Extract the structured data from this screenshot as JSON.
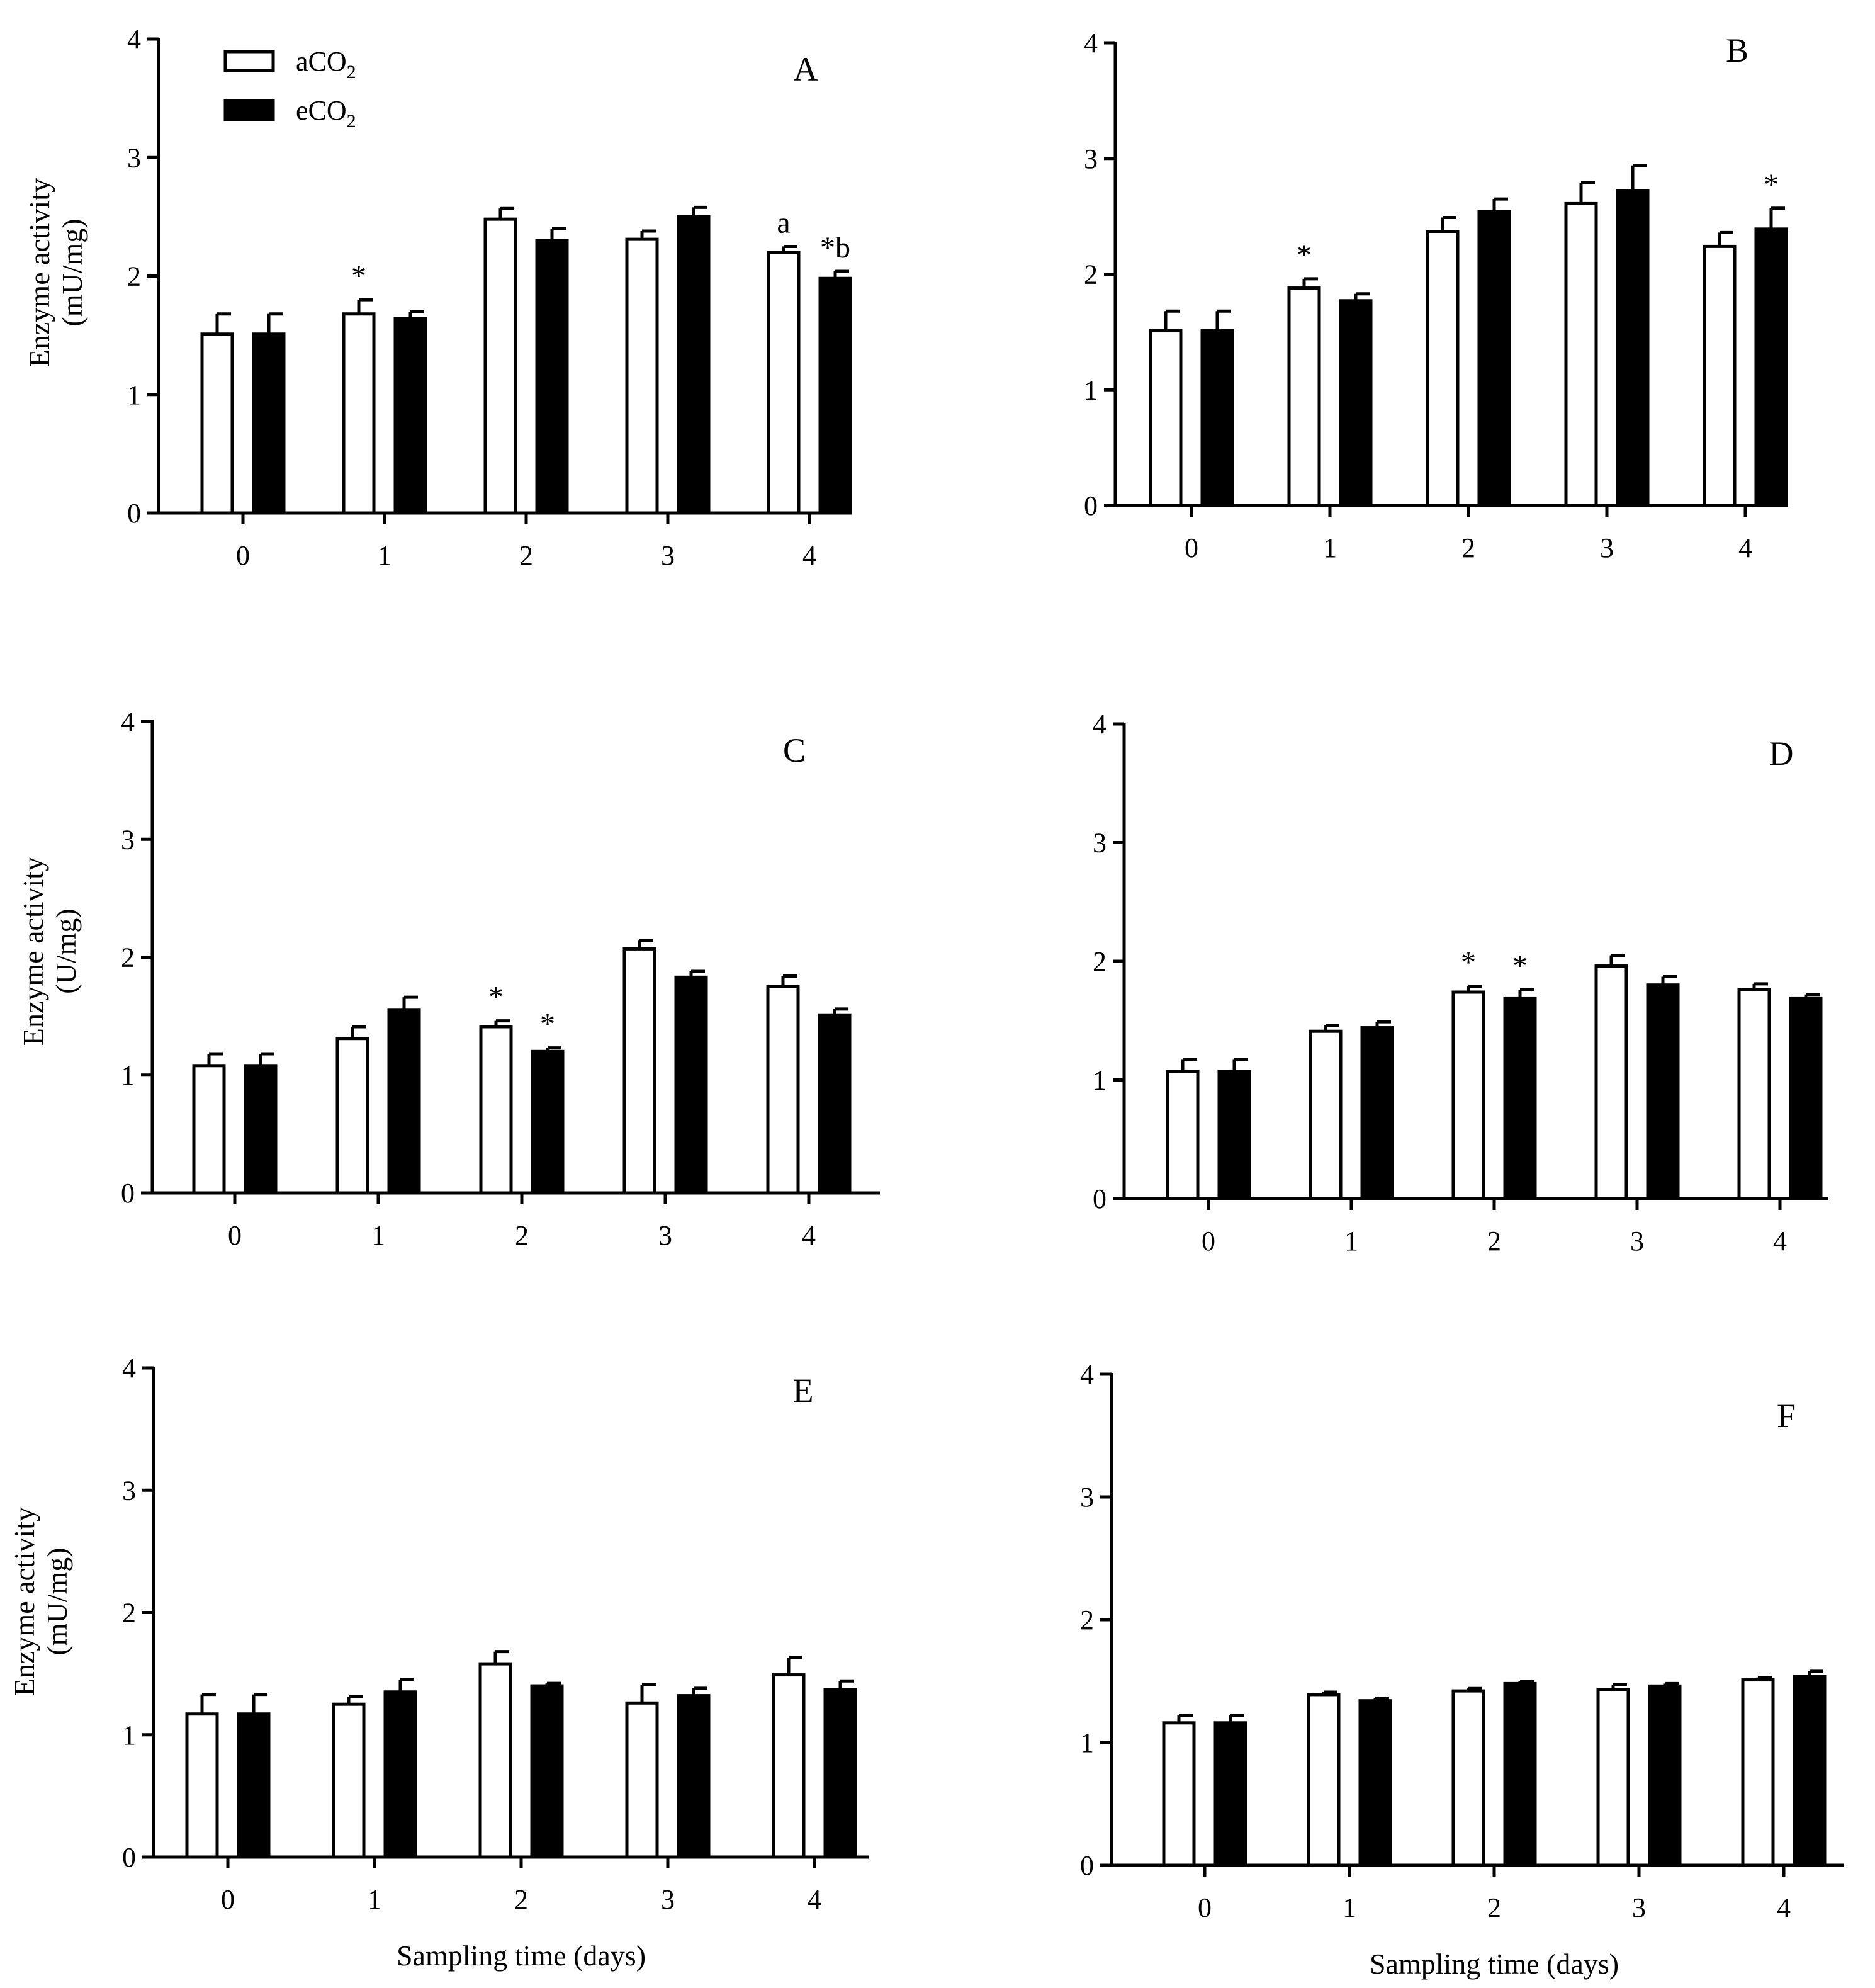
{
  "figure": {
    "legend": {
      "series": [
        {
          "name": "aCO",
          "sub": "2",
          "style": "open"
        },
        {
          "name": "eCO",
          "sub": "2",
          "style": "filled"
        }
      ]
    },
    "x_title": "Sampling time (days)"
  },
  "colors": {
    "open_fill": "#ffffff",
    "filled": "#000000",
    "stroke": "#000000"
  },
  "chart_data": [
    {
      "panel": "A",
      "type": "bar",
      "categories": [
        "0",
        "1",
        "2",
        "3",
        "4"
      ],
      "ylabel": [
        "Enzyme activity",
        "(mU/mg)"
      ],
      "xlabel": "",
      "ylim": [
        0,
        4
      ],
      "yticks": [
        0,
        1,
        2,
        3,
        4
      ],
      "series": [
        {
          "name": "aCO2",
          "values": [
            1.51,
            1.68,
            2.48,
            2.31,
            2.2
          ],
          "errors": [
            0.17,
            0.12,
            0.09,
            0.07,
            0.05
          ]
        },
        {
          "name": "eCO2",
          "values": [
            1.51,
            1.64,
            2.3,
            2.5,
            1.98
          ],
          "errors": [
            0.17,
            0.06,
            0.1,
            0.08,
            0.06
          ]
        }
      ],
      "annotations": [
        {
          "category": 1,
          "series": 0,
          "text": "*"
        },
        {
          "category": 4,
          "series": 0,
          "text": "a"
        },
        {
          "category": 4,
          "series": 1,
          "text": "*b"
        }
      ],
      "legend": "top-left"
    },
    {
      "panel": "B",
      "type": "bar",
      "categories": [
        "0",
        "1",
        "2",
        "3",
        "4"
      ],
      "ylabel": [],
      "xlabel": "",
      "ylim": [
        0,
        4
      ],
      "yticks": [
        0,
        1,
        2,
        3,
        4
      ],
      "series": [
        {
          "name": "aCO2",
          "values": [
            1.51,
            1.88,
            2.37,
            2.61,
            2.24
          ],
          "errors": [
            0.17,
            0.08,
            0.12,
            0.18,
            0.12
          ]
        },
        {
          "name": "eCO2",
          "values": [
            1.51,
            1.77,
            2.54,
            2.72,
            2.39
          ],
          "errors": [
            0.17,
            0.06,
            0.11,
            0.22,
            0.18
          ]
        }
      ],
      "annotations": [
        {
          "category": 1,
          "series": 0,
          "text": "*"
        },
        {
          "category": 4,
          "series": 1,
          "text": "*"
        }
      ]
    },
    {
      "panel": "C",
      "type": "bar",
      "categories": [
        "0",
        "1",
        "2",
        "3",
        "4"
      ],
      "ylabel": [
        "Enzyme activity",
        "(U/mg)"
      ],
      "xlabel": "",
      "ylim": [
        0,
        4
      ],
      "yticks": [
        0,
        1,
        2,
        3,
        4
      ],
      "series": [
        {
          "name": "aCO2",
          "values": [
            1.08,
            1.31,
            1.41,
            2.07,
            1.75
          ],
          "errors": [
            0.1,
            0.1,
            0.05,
            0.07,
            0.09
          ]
        },
        {
          "name": "eCO2",
          "values": [
            1.08,
            1.55,
            1.2,
            1.83,
            1.51
          ],
          "errors": [
            0.1,
            0.11,
            0.03,
            0.05,
            0.05
          ]
        }
      ],
      "annotations": [
        {
          "category": 2,
          "series": 0,
          "text": "*"
        },
        {
          "category": 2,
          "series": 1,
          "text": "*"
        }
      ]
    },
    {
      "panel": "D",
      "type": "bar",
      "categories": [
        "0",
        "1",
        "2",
        "3",
        "4"
      ],
      "ylabel": [],
      "xlabel": "",
      "ylim": [
        0,
        4
      ],
      "yticks": [
        0,
        1,
        2,
        3,
        4
      ],
      "series": [
        {
          "name": "aCO2",
          "values": [
            1.07,
            1.41,
            1.74,
            1.96,
            1.76
          ],
          "errors": [
            0.1,
            0.05,
            0.05,
            0.09,
            0.05
          ]
        },
        {
          "name": "eCO2",
          "values": [
            1.07,
            1.44,
            1.69,
            1.8,
            1.69
          ],
          "errors": [
            0.1,
            0.05,
            0.07,
            0.07,
            0.03
          ]
        }
      ],
      "annotations": [
        {
          "category": 2,
          "series": 0,
          "text": "*"
        },
        {
          "category": 2,
          "series": 1,
          "text": "*"
        }
      ]
    },
    {
      "panel": "E",
      "type": "bar",
      "categories": [
        "0",
        "1",
        "2",
        "3",
        "4"
      ],
      "ylabel": [
        "Enzyme activity",
        "(mU/mg)"
      ],
      "xlabel": "Sampling time (days)",
      "ylim": [
        0,
        4
      ],
      "yticks": [
        0,
        1,
        2,
        3,
        4
      ],
      "series": [
        {
          "name": "aCO2",
          "values": [
            1.17,
            1.25,
            1.58,
            1.26,
            1.49
          ],
          "errors": [
            0.16,
            0.06,
            0.1,
            0.15,
            0.14
          ]
        },
        {
          "name": "eCO2",
          "values": [
            1.17,
            1.35,
            1.4,
            1.32,
            1.37
          ],
          "errors": [
            0.16,
            0.1,
            0.02,
            0.06,
            0.07
          ]
        }
      ],
      "annotations": []
    },
    {
      "panel": "F",
      "type": "bar",
      "categories": [
        "0",
        "1",
        "2",
        "3",
        "4"
      ],
      "ylabel": [],
      "xlabel": "Sampling time (days)",
      "ylim": [
        0,
        4
      ],
      "yticks": [
        0,
        1,
        2,
        3,
        4
      ],
      "series": [
        {
          "name": "aCO2",
          "values": [
            1.16,
            1.39,
            1.42,
            1.43,
            1.51
          ],
          "errors": [
            0.06,
            0.02,
            0.02,
            0.04,
            0.02
          ]
        },
        {
          "name": "eCO2",
          "values": [
            1.16,
            1.34,
            1.48,
            1.46,
            1.54
          ],
          "errors": [
            0.06,
            0.02,
            0.02,
            0.02,
            0.04
          ]
        }
      ],
      "annotations": []
    }
  ]
}
